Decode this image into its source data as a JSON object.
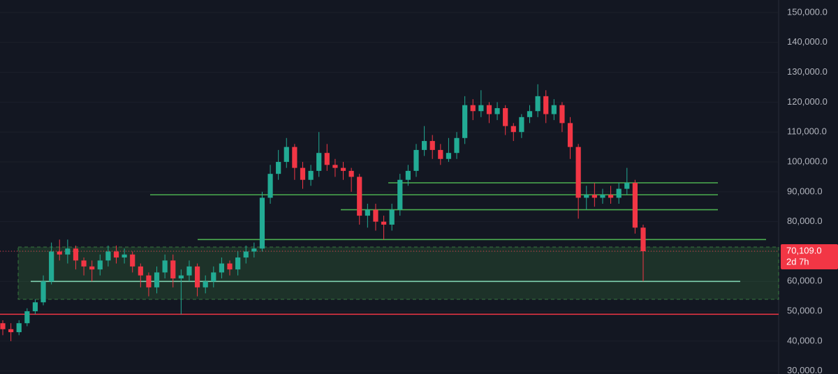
{
  "chart_data": {
    "type": "candlestick",
    "open": [
      46000,
      44000,
      43000,
      46000,
      50000,
      53000,
      60000,
      70000,
      69000,
      71000,
      67000,
      65000,
      64000,
      67000,
      70000,
      68000,
      69000,
      65000,
      62000,
      58000,
      63000,
      67000,
      61000,
      62000,
      65000,
      58000,
      60000,
      63000,
      66000,
      64000,
      68000,
      70000,
      71000,
      88000,
      96000,
      100000,
      105000,
      98000,
      94000,
      97000,
      103000,
      99000,
      98000,
      97000,
      95000,
      82000,
      84000,
      80000,
      79000,
      84000,
      94000,
      97000,
      104000,
      107000,
      104000,
      101000,
      103000,
      108000,
      119000,
      117000,
      119000,
      116000,
      118000,
      112000,
      110000,
      115000,
      117000,
      122000,
      116000,
      119000,
      113000,
      105000,
      88000,
      89000,
      88000,
      89000,
      88000,
      91000,
      93000,
      78000
    ],
    "high": [
      47000,
      46000,
      47000,
      51000,
      54000,
      62000,
      73000,
      74000,
      74000,
      72000,
      68000,
      67000,
      69000,
      72000,
      72000,
      71000,
      70000,
      66000,
      63000,
      65000,
      69000,
      69000,
      64000,
      67000,
      66000,
      62000,
      65000,
      68000,
      67000,
      70000,
      72000,
      73000,
      90000,
      99000,
      104000,
      108000,
      106000,
      100000,
      99000,
      110000,
      106000,
      101000,
      100000,
      98000,
      96000,
      86000,
      86000,
      82000,
      86000,
      96000,
      99000,
      106000,
      112000,
      109000,
      106000,
      108000,
      110000,
      122000,
      121000,
      124000,
      120000,
      120000,
      119000,
      113000,
      116000,
      119000,
      126000,
      124000,
      121000,
      120000,
      115000,
      106000,
      92000,
      93000,
      91000,
      92000,
      93000,
      98000,
      94000,
      79000
    ],
    "low": [
      42000,
      40000,
      42000,
      45000,
      49000,
      52000,
      59000,
      67000,
      66000,
      64000,
      62000,
      60000,
      62000,
      65000,
      66000,
      66000,
      63000,
      58000,
      55000,
      56000,
      61000,
      58000,
      49000,
      60000,
      55000,
      56000,
      58000,
      61000,
      62000,
      62000,
      66000,
      68000,
      70000,
      86000,
      94000,
      98000,
      94000,
      91000,
      92000,
      95000,
      97000,
      95000,
      94000,
      90000,
      79000,
      78000,
      77000,
      74000,
      77000,
      82000,
      92000,
      95000,
      102000,
      101000,
      99000,
      100000,
      101000,
      106000,
      114000,
      115000,
      113000,
      114000,
      109000,
      107000,
      108000,
      113000,
      115000,
      113000,
      114000,
      110000,
      101000,
      81000,
      84000,
      85000,
      86000,
      86000,
      86000,
      89000,
      76000,
      60000
    ],
    "close": [
      44000,
      43000,
      46000,
      50000,
      53000,
      60000,
      70000,
      69000,
      71000,
      67000,
      65000,
      64000,
      67000,
      70000,
      68000,
      69000,
      65000,
      62000,
      58000,
      63000,
      67000,
      61000,
      62000,
      65000,
      58000,
      60000,
      63000,
      66000,
      64000,
      68000,
      70000,
      71000,
      88000,
      96000,
      100000,
      105000,
      98000,
      94000,
      97000,
      103000,
      99000,
      98000,
      97000,
      95000,
      82000,
      84000,
      80000,
      79000,
      84000,
      94000,
      97000,
      104000,
      107000,
      104000,
      101000,
      103000,
      108000,
      119000,
      117000,
      119000,
      116000,
      118000,
      112000,
      110000,
      115000,
      117000,
      122000,
      116000,
      119000,
      113000,
      105000,
      88000,
      89000,
      88000,
      89000,
      88000,
      91000,
      93000,
      78000,
      70109
    ],
    "up_color": "#22ab94",
    "down_color": "#f23645",
    "ylim": [
      29000,
      154200
    ],
    "yticks": [
      {
        "value": 30000,
        "label": "30,000.0"
      },
      {
        "value": 40000,
        "label": "40,000.0"
      },
      {
        "value": 50000,
        "label": "50,000.0"
      },
      {
        "value": 60000,
        "label": "60,000.0"
      },
      {
        "value": 70000,
        "label": "70,000.0"
      },
      {
        "value": 80000,
        "label": "80,000.0"
      },
      {
        "value": 90000,
        "label": "90,000.0"
      },
      {
        "value": 100000,
        "label": "100,000.0"
      },
      {
        "value": 110000,
        "label": "110,000.0"
      },
      {
        "value": 120000,
        "label": "120,000.0"
      },
      {
        "value": 130000,
        "label": "130,000.0"
      },
      {
        "value": 140000,
        "label": "140,000.0"
      },
      {
        "value": 150000,
        "label": "150,000.0"
      }
    ],
    "zone": [
      54000,
      71500
    ],
    "zone_color": "#4caf50",
    "levels": [
      {
        "value": 93000,
        "color": "#4caf50"
      },
      {
        "value": 89000,
        "color": "#4caf50"
      },
      {
        "value": 84000,
        "color": "#4caf50"
      },
      {
        "value": 74000,
        "color": "#4caf50"
      },
      {
        "value": 60000,
        "color": "#7fd1b0"
      },
      {
        "value": 49000,
        "color": "#f23645"
      }
    ],
    "last_price": 70109,
    "last_price_label": "70,109.0",
    "countdown": "2d 7h"
  }
}
